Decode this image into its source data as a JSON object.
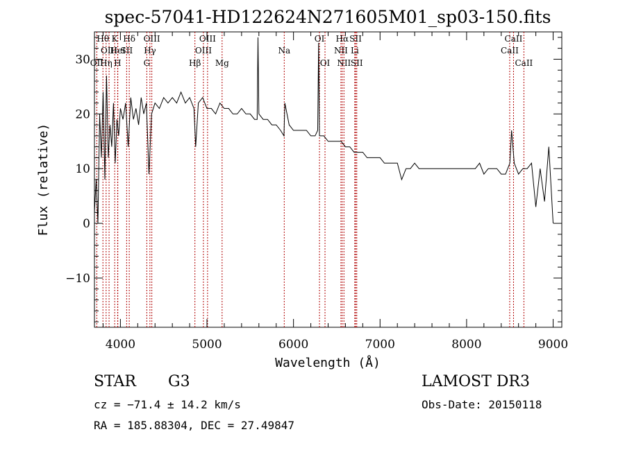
{
  "title": "spec-57041-HD122624N271605M01_sp03-150.fits",
  "info": {
    "class_label": "STAR",
    "subclass": "G3",
    "survey": "LAMOST DR3",
    "cz": "cz = −71.4 ± 14.2 km/s",
    "obs_date": "Obs-Date: 20150118",
    "coords": "RA = 185.88304, DEC =  27.49847"
  },
  "colors": {
    "line_marker": "#b00000",
    "spectrum": "#000000"
  },
  "chart_data": {
    "type": "line",
    "title": "spec-57041-HD122624N271605M01_sp03-150.fits",
    "xlabel": "Wavelength (Å)",
    "ylabel": "Flux (relative)",
    "xlim": [
      3700,
      9100
    ],
    "ylim": [
      -19,
      35
    ],
    "xticks": [
      "4000",
      "5000",
      "6000",
      "7000",
      "8000",
      "9000"
    ],
    "xtick_values": [
      4000,
      5000,
      6000,
      7000,
      8000,
      9000
    ],
    "yticks": [
      "−10",
      "0",
      "10",
      "20",
      "30"
    ],
    "ytick_values": [
      -10,
      0,
      10,
      20,
      30
    ],
    "grid": false,
    "spectral_lines": [
      {
        "label": "OII",
        "wavelength": 3727,
        "row": 2
      },
      {
        "label": "Hθ",
        "wavelength": 3798,
        "row": 0
      },
      {
        "label": "Hη",
        "wavelength": 3835,
        "row": 2
      },
      {
        "label": "OIII",
        "wavelength": 3869,
        "row": 1
      },
      {
        "label": "K",
        "wavelength": 3934,
        "row": 0
      },
      {
        "label": "HeI",
        "wavelength": 3970,
        "row": 1
      },
      {
        "label": "H",
        "wavelength": 3968,
        "row": 2
      },
      {
        "label": "Hδ",
        "wavelength": 4102,
        "row": 0
      },
      {
        "label": "SII",
        "wavelength": 4072,
        "row": 1
      },
      {
        "label": "OIII",
        "wavelength": 4363,
        "row": 0
      },
      {
        "label": "Hγ",
        "wavelength": 4341,
        "row": 1
      },
      {
        "label": "G",
        "wavelength": 4305,
        "row": 2
      },
      {
        "label": "Hβ",
        "wavelength": 4861,
        "row": 2
      },
      {
        "label": "OIII",
        "wavelength": 5007,
        "row": 0
      },
      {
        "label": "OIII",
        "wavelength": 4959,
        "row": 1
      },
      {
        "label": "Mg",
        "wavelength": 5175,
        "row": 2
      },
      {
        "label": "Na",
        "wavelength": 5893,
        "row": 1
      },
      {
        "label": "OI",
        "wavelength": 6300,
        "row": 0
      },
      {
        "label": "OI",
        "wavelength": 6364,
        "row": 2
      },
      {
        "label": "Hα",
        "wavelength": 6563,
        "row": 0
      },
      {
        "label": "NII",
        "wavelength": 6548,
        "row": 1
      },
      {
        "label": "NII",
        "wavelength": 6583,
        "row": 2
      },
      {
        "label": "SII",
        "wavelength": 6717,
        "row": 0
      },
      {
        "label": "Li",
        "wavelength": 6708,
        "row": 1
      },
      {
        "label": "SII",
        "wavelength": 6731,
        "row": 2
      },
      {
        "label": "CaII",
        "wavelength": 8542,
        "row": 0
      },
      {
        "label": "CaII",
        "wavelength": 8498,
        "row": 1
      },
      {
        "label": "CaII",
        "wavelength": 8662,
        "row": 2
      }
    ],
    "series": [
      {
        "x": [
          3700,
          3720,
          3740,
          3760,
          3780,
          3800,
          3820,
          3840,
          3860,
          3880,
          3900,
          3920,
          3940,
          3960,
          3980,
          4000,
          4030,
          4060,
          4090,
          4120,
          4150,
          4180,
          4210,
          4240,
          4270,
          4300,
          4330,
          4360,
          4400,
          4450,
          4500,
          4550,
          4600,
          4650,
          4700,
          4750,
          4800,
          4850,
          4870,
          4900,
          4950,
          5000,
          5050,
          5100,
          5150,
          5200,
          5250,
          5300,
          5350,
          5400,
          5450,
          5500,
          5550,
          5580,
          5590,
          5600,
          5650,
          5700,
          5750,
          5800,
          5850,
          5890,
          5900,
          5950,
          6000,
          6050,
          6100,
          6150,
          6200,
          6250,
          6280,
          6290,
          6300,
          6320,
          6350,
          6400,
          6450,
          6500,
          6550,
          6600,
          6650,
          6700,
          6750,
          6800,
          6850,
          6900,
          6950,
          7000,
          7050,
          7100,
          7150,
          7200,
          7250,
          7300,
          7350,
          7400,
          7450,
          7500,
          7550,
          7600,
          7650,
          7700,
          7750,
          7800,
          7850,
          7900,
          7950,
          8000,
          8050,
          8100,
          8150,
          8200,
          8250,
          8300,
          8350,
          8400,
          8450,
          8500,
          8520,
          8550,
          8600,
          8650,
          8700,
          8750,
          8800,
          8850,
          8900,
          8950,
          9000
        ],
        "y": [
          2,
          8,
          0,
          20,
          12,
          24,
          8,
          27,
          12,
          18,
          14,
          22,
          11,
          19,
          16,
          21,
          19,
          22,
          14,
          23,
          19,
          21,
          18,
          23,
          20,
          22,
          9,
          20,
          22,
          21,
          23,
          22,
          23,
          22,
          24,
          22,
          23,
          21,
          14,
          22,
          23,
          21,
          21,
          20,
          22,
          21,
          21,
          20,
          20,
          21,
          20,
          20,
          19,
          19,
          34,
          20,
          19,
          19,
          18,
          18,
          17,
          16,
          22,
          18,
          17,
          17,
          17,
          17,
          16,
          16,
          17,
          33,
          16,
          16,
          16,
          15,
          15,
          15,
          15,
          14,
          14,
          13,
          13,
          13,
          12,
          12,
          12,
          12,
          11,
          11,
          11,
          11,
          8,
          10,
          10,
          11,
          10,
          10,
          10,
          10,
          10,
          10,
          10,
          10,
          10,
          10,
          10,
          10,
          10,
          10,
          11,
          9,
          10,
          10,
          10,
          9,
          9,
          11,
          17,
          11,
          9,
          10,
          10,
          11,
          3,
          10,
          4,
          14,
          0
        ]
      }
    ]
  }
}
